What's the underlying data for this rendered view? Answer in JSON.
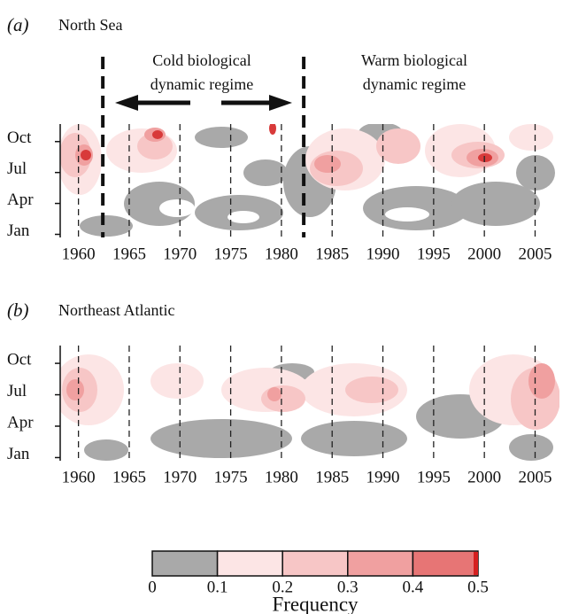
{
  "chart_data": [
    {
      "type": "heatmap",
      "panel_label": "(a)",
      "title": "North Sea",
      "xlim": [
        1958.2,
        2007.4
      ],
      "xticks": [
        1960,
        1965,
        1970,
        1975,
        1980,
        1985,
        1990,
        1995,
        2000,
        2005
      ],
      "ylim": [
        0.7,
        11.7
      ],
      "yticks": [
        {
          "value": 1,
          "label": "Jan"
        },
        {
          "value": 4,
          "label": "Apr"
        },
        {
          "value": 7,
          "label": "Jul"
        },
        {
          "value": 10,
          "label": "Oct"
        }
      ],
      "grid": true,
      "regime_boundaries": [
        1962.4,
        1982.2
      ],
      "annotations": [
        [
          "Cold biological",
          "dynamic regime"
        ],
        [
          "Warm biological",
          "dynamic regime"
        ]
      ]
    },
    {
      "type": "heatmap",
      "panel_label": "(b)",
      "title": "Northeast Atlantic",
      "xlim": [
        1958.2,
        2007.4
      ],
      "xticks": [
        1960,
        1965,
        1970,
        1975,
        1980,
        1985,
        1990,
        1995,
        2000,
        2005
      ],
      "ylim": [
        0.7,
        11.7
      ],
      "yticks": [
        {
          "value": 1,
          "label": "Jan"
        },
        {
          "value": 4,
          "label": "Apr"
        },
        {
          "value": 7,
          "label": "Jul"
        },
        {
          "value": 10,
          "label": "Oct"
        }
      ],
      "grid": true
    }
  ],
  "colorbar": {
    "ticks": [
      0,
      0.1,
      0.2,
      0.3,
      0.4,
      0.5
    ],
    "colors": [
      "#a9a9a9",
      "#fce5e5",
      "#f7c6c6",
      "#f0a0a0",
      "#e77575"
    ],
    "label": "Frequency"
  }
}
